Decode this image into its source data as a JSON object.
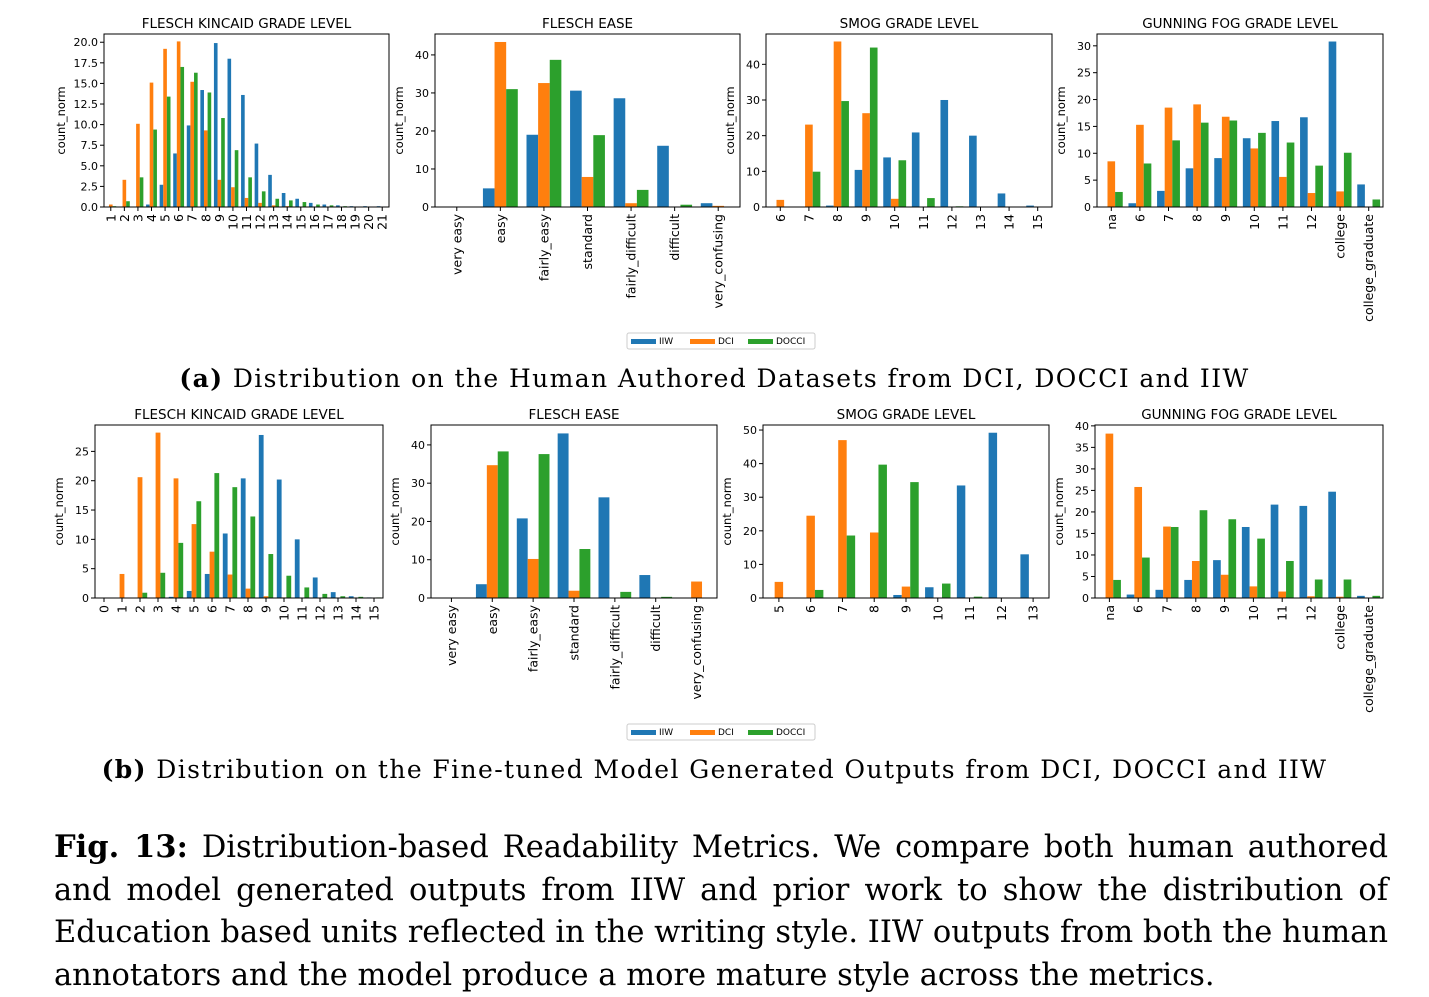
{
  "colors": {
    "IIW": "#1f77b4",
    "DCI": "#ff7f0e",
    "DOCCI": "#2ca02c"
  },
  "legend": [
    "IIW",
    "DCI",
    "DOCCI"
  ],
  "ylabel": "count_norm",
  "subcaptions": {
    "a_label": "(a)",
    "a_text": "Distribution on the Human Authored Datasets from DCI, DOCCI and IIW",
    "b_label": "(b)",
    "b_text": "Distribution on the Fine-tuned Model Generated Outputs from DCI, DOCCI and IIW"
  },
  "caption": {
    "label": "Fig. 13:",
    "text": "Distribution-based Readability Metrics. We compare both human authored and model generated outputs from IIW and prior work to show the distribution of Education based units reflected in the writing style. IIW outputs from both the human annotators and the model produce a more mature style across the metrics."
  },
  "chart_data": [
    {
      "type": "bar",
      "row": "a",
      "title": "FLESCH KINCAID GRADE LEVEL",
      "ylabel": "count_norm",
      "ylim": [
        0,
        21
      ],
      "yticks": [
        0.0,
        2.5,
        5.0,
        7.5,
        10.0,
        12.5,
        15.0,
        17.5,
        20.0
      ],
      "ytick_decimals": 1,
      "categories": [
        "1",
        "2",
        "3",
        "4",
        "5",
        "6",
        "7",
        "8",
        "9",
        "10",
        "11",
        "12",
        "13",
        "14",
        "15",
        "16",
        "17",
        "18",
        "19",
        "20",
        "21"
      ],
      "series": [
        {
          "name": "IIW",
          "values": [
            0,
            0,
            0,
            0.3,
            2.7,
            6.5,
            9.9,
            14.2,
            19.9,
            18.0,
            13.6,
            7.7,
            3.9,
            1.7,
            1.0,
            0.5,
            0.3,
            0.2,
            0.1,
            0.1,
            0.1
          ]
        },
        {
          "name": "DCI",
          "values": [
            0.3,
            3.3,
            10.1,
            15.1,
            19.2,
            20.1,
            15.2,
            9.3,
            3.3,
            2.4,
            1.1,
            0.5,
            0.2,
            0.1,
            0,
            0,
            0,
            0,
            0,
            0,
            0
          ]
        },
        {
          "name": "DOCCI",
          "values": [
            0.1,
            0.7,
            3.6,
            9.4,
            13.4,
            17.0,
            16.3,
            13.9,
            10.8,
            6.9,
            3.6,
            1.9,
            1.0,
            0.8,
            0.6,
            0.3,
            0.2,
            0.1,
            0,
            0,
            0
          ]
        }
      ]
    },
    {
      "type": "bar",
      "row": "a",
      "title": "FLESCH EASE",
      "ylabel": "count_norm",
      "ylim": [
        0,
        45.5
      ],
      "yticks": [
        0,
        10,
        20,
        30,
        40
      ],
      "ytick_decimals": 0,
      "categories": [
        "very easy",
        "easy",
        "fairly_easy",
        "standard",
        "fairly_difficult",
        "difficult",
        "very_confusing"
      ],
      "series": [
        {
          "name": "IIW",
          "values": [
            0,
            4.9,
            19.0,
            30.6,
            28.6,
            16.1,
            1.0
          ]
        },
        {
          "name": "DCI",
          "values": [
            0,
            43.4,
            32.6,
            7.9,
            1.0,
            0,
            0.3
          ]
        },
        {
          "name": "DOCCI",
          "values": [
            0,
            31.0,
            38.7,
            18.9,
            4.5,
            0.6,
            0
          ]
        }
      ]
    },
    {
      "type": "bar",
      "row": "a",
      "title": "SMOG GRADE LEVEL",
      "ylabel": "count_norm",
      "ylim": [
        0,
        48.5
      ],
      "yticks": [
        0,
        10,
        20,
        30,
        40
      ],
      "ytick_decimals": 0,
      "categories": [
        "6",
        "7",
        "8",
        "9",
        "10",
        "11",
        "12",
        "13",
        "14",
        "15"
      ],
      "series": [
        {
          "name": "IIW",
          "values": [
            0,
            0,
            0.4,
            10.4,
            13.9,
            20.9,
            30.0,
            20.0,
            3.8,
            0.4
          ]
        },
        {
          "name": "DCI",
          "values": [
            2.0,
            23.1,
            46.4,
            26.3,
            2.3,
            0,
            0,
            0,
            0,
            0
          ]
        },
        {
          "name": "DOCCI",
          "values": [
            0,
            9.9,
            29.7,
            44.7,
            13.1,
            2.5,
            0.2,
            0,
            0,
            0
          ]
        }
      ]
    },
    {
      "type": "bar",
      "row": "a",
      "title": "GUNNING FOG GRADE LEVEL",
      "ylabel": "count_norm",
      "ylim": [
        0,
        32.2
      ],
      "yticks": [
        0,
        5,
        10,
        15,
        20,
        25,
        30
      ],
      "ytick_decimals": 0,
      "categories": [
        "na",
        "6",
        "7",
        "8",
        "9",
        "10",
        "11",
        "12",
        "college",
        "college_graduate"
      ],
      "series": [
        {
          "name": "IIW",
          "values": [
            0,
            0.7,
            3.0,
            7.2,
            9.1,
            12.8,
            16.0,
            16.7,
            30.8,
            4.2
          ]
        },
        {
          "name": "DCI",
          "values": [
            8.5,
            15.3,
            18.5,
            19.1,
            16.8,
            10.9,
            5.6,
            2.6,
            2.9,
            0
          ]
        },
        {
          "name": "DOCCI",
          "values": [
            2.8,
            8.1,
            12.4,
            15.7,
            16.1,
            13.8,
            12.0,
            7.7,
            10.1,
            1.4
          ]
        }
      ]
    },
    {
      "type": "bar",
      "row": "b",
      "title": "FLESCH KINCAID GRADE LEVEL",
      "ylabel": "count_norm",
      "ylim": [
        0,
        29.5
      ],
      "yticks": [
        0,
        5,
        10,
        15,
        20,
        25
      ],
      "ytick_decimals": 0,
      "categories": [
        "0",
        "1",
        "2",
        "3",
        "4",
        "5",
        "6",
        "7",
        "8",
        "9",
        "10",
        "11",
        "12",
        "13",
        "14",
        "15"
      ],
      "series": [
        {
          "name": "IIW",
          "values": [
            0,
            0,
            0,
            0,
            0.2,
            1.2,
            4.1,
            11.0,
            20.4,
            27.8,
            20.2,
            10.0,
            3.5,
            1.0,
            0.3,
            0.1
          ]
        },
        {
          "name": "DCI",
          "values": [
            0,
            4.1,
            20.6,
            28.2,
            20.4,
            12.6,
            7.9,
            4.0,
            1.6,
            0.3,
            0.1,
            0,
            0,
            0,
            0,
            0
          ]
        },
        {
          "name": "DOCCI",
          "values": [
            0,
            0,
            0.9,
            4.3,
            9.4,
            16.5,
            21.3,
            18.9,
            13.9,
            7.5,
            3.8,
            1.8,
            0.7,
            0.3,
            0.2,
            0.1
          ]
        }
      ]
    },
    {
      "type": "bar",
      "row": "b",
      "title": "FLESCH EASE",
      "ylabel": "count_norm",
      "ylim": [
        0,
        45.2
      ],
      "yticks": [
        0,
        10,
        20,
        30,
        40
      ],
      "ytick_decimals": 0,
      "categories": [
        "very easy",
        "easy",
        "fairly_easy",
        "standard",
        "fairly_difficult",
        "difficult",
        "very_confusing"
      ],
      "series": [
        {
          "name": "IIW",
          "values": [
            0,
            3.6,
            20.8,
            43.0,
            26.3,
            6.0,
            0
          ]
        },
        {
          "name": "DCI",
          "values": [
            0,
            34.7,
            10.2,
            1.9,
            0,
            0,
            4.3
          ]
        },
        {
          "name": "DOCCI",
          "values": [
            0,
            38.3,
            37.6,
            12.8,
            1.6,
            0.3,
            0
          ]
        }
      ]
    },
    {
      "type": "bar",
      "row": "b",
      "title": "SMOG GRADE LEVEL",
      "ylabel": "count_norm",
      "ylim": [
        0,
        51.5
      ],
      "yticks": [
        0,
        10,
        20,
        30,
        40,
        50
      ],
      "ytick_decimals": 0,
      "categories": [
        "5",
        "6",
        "7",
        "8",
        "9",
        "10",
        "11",
        "12",
        "13"
      ],
      "series": [
        {
          "name": "IIW",
          "values": [
            0,
            0,
            0,
            0,
            0.9,
            3.2,
            33.5,
            49.2,
            13.0
          ]
        },
        {
          "name": "DCI",
          "values": [
            4.8,
            24.5,
            47.0,
            19.5,
            3.4,
            0,
            0,
            0,
            0
          ]
        },
        {
          "name": "DOCCI",
          "values": [
            0,
            2.4,
            18.6,
            39.7,
            34.5,
            4.3,
            0.4,
            0,
            0
          ]
        }
      ]
    },
    {
      "type": "bar",
      "row": "b",
      "title": "GUNNING FOG GRADE LEVEL",
      "ylabel": "count_norm",
      "ylim": [
        0,
        40.2
      ],
      "yticks": [
        0,
        5,
        10,
        15,
        20,
        25,
        30,
        35,
        40
      ],
      "ytick_decimals": 0,
      "categories": [
        "na",
        "6",
        "7",
        "8",
        "9",
        "10",
        "11",
        "12",
        "college",
        "college_graduate"
      ],
      "series": [
        {
          "name": "IIW",
          "values": [
            0,
            0.8,
            1.9,
            4.2,
            8.8,
            16.5,
            21.7,
            21.4,
            24.7,
            0.5
          ]
        },
        {
          "name": "DCI",
          "values": [
            38.2,
            25.8,
            16.6,
            8.6,
            5.4,
            2.7,
            1.5,
            0.4,
            0.3,
            0
          ]
        },
        {
          "name": "DOCCI",
          "values": [
            4.2,
            9.4,
            16.5,
            20.4,
            18.3,
            13.8,
            8.6,
            4.3,
            4.3,
            0.5
          ]
        }
      ]
    }
  ]
}
